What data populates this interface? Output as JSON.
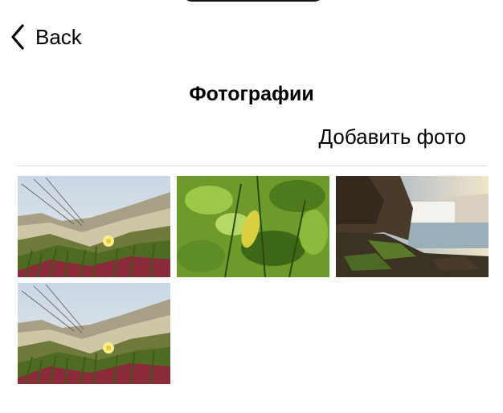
{
  "nav": {
    "back_label": "Back",
    "back_icon": "chevron-left-icon"
  },
  "header": {
    "title": "Фотографии"
  },
  "actions": {
    "add_photo_label": "Добавить фото"
  },
  "photos": [
    {
      "subject": "beach grass with yellow flower"
    },
    {
      "subject": "green leaves"
    },
    {
      "subject": "waterfall with rocks"
    },
    {
      "subject": "beach grass with yellow flower"
    }
  ],
  "colors": {
    "background": "#ffffff",
    "text": "#000000",
    "divider": "#d9d9d9"
  }
}
